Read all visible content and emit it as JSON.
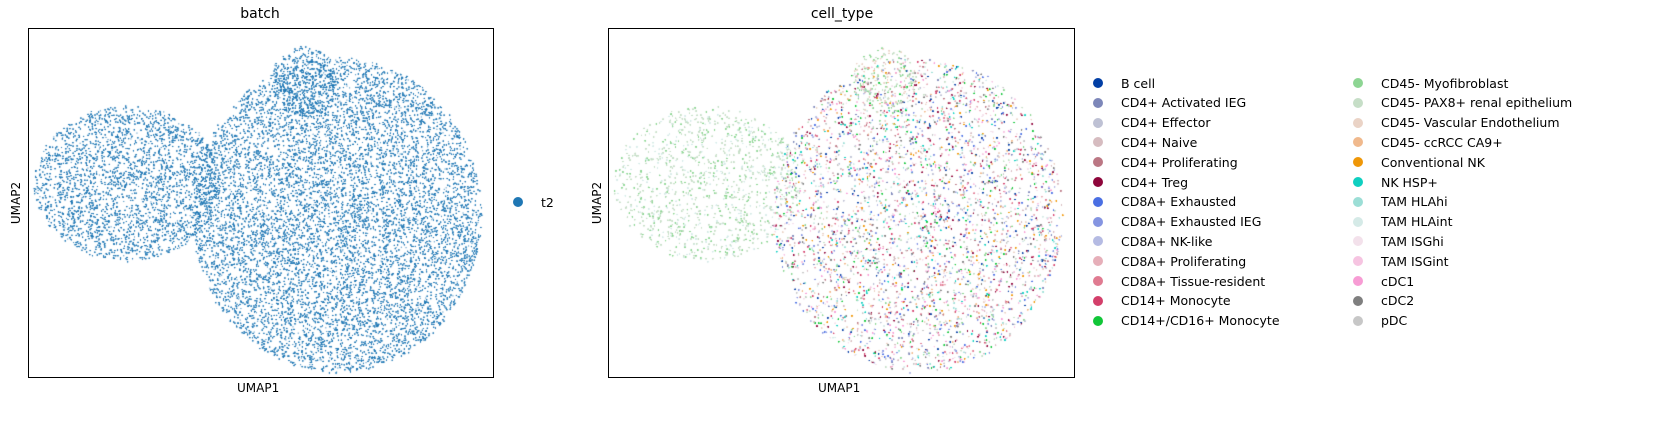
{
  "chart_data": [
    {
      "type": "scatter",
      "title": "batch",
      "xlabel": "UMAP1",
      "ylabel": "UMAP2",
      "grid": false,
      "legend_placement": "right",
      "series": [
        {
          "name": "t2",
          "color": "#1f77b4"
        }
      ]
    },
    {
      "type": "scatter",
      "title": "cell_type",
      "xlabel": "UMAP1",
      "ylabel": "UMAP2",
      "grid": false,
      "legend_placement": "right",
      "series": [
        {
          "name": "B cell",
          "color": "#023fa5"
        },
        {
          "name": "CD4+ Activated IEG",
          "color": "#7d87b9"
        },
        {
          "name": "CD4+ Effector",
          "color": "#bec1d4"
        },
        {
          "name": "CD4+ Naive",
          "color": "#d6bcc0"
        },
        {
          "name": "CD4+ Proliferating",
          "color": "#bb7784"
        },
        {
          "name": "CD4+ Treg",
          "color": "#8e063b"
        },
        {
          "name": "CD8A+ Exhausted",
          "color": "#4a6fe3"
        },
        {
          "name": "CD8A+ Exhausted IEG",
          "color": "#8595e1"
        },
        {
          "name": "CD8A+ NK-like",
          "color": "#b5bbe3"
        },
        {
          "name": "CD8A+ Proliferating",
          "color": "#e6afb9"
        },
        {
          "name": "CD8A+ Tissue-resident",
          "color": "#e07b91"
        },
        {
          "name": "CD14+ Monocyte",
          "color": "#d33f6a"
        },
        {
          "name": "CD14+/CD16+ Monocyte",
          "color": "#11c638"
        },
        {
          "name": "CD45- Myofibroblast",
          "color": "#8dd593"
        },
        {
          "name": "CD45- PAX8+ renal epithelium",
          "color": "#c6dec7"
        },
        {
          "name": "CD45- Vascular Endothelium",
          "color": "#ead3c6"
        },
        {
          "name": "CD45- ccRCC CA9+",
          "color": "#f0b98d"
        },
        {
          "name": "Conventional NK",
          "color": "#ef9708"
        },
        {
          "name": "NK HSP+",
          "color": "#0fcfc0"
        },
        {
          "name": "TAM HLAhi",
          "color": "#9cded6"
        },
        {
          "name": "TAM HLAint",
          "color": "#d5eae7"
        },
        {
          "name": "TAM ISGhi",
          "color": "#f3e1eb"
        },
        {
          "name": "TAM ISGint",
          "color": "#f6c4e1"
        },
        {
          "name": "cDC1",
          "color": "#f79cd4"
        },
        {
          "name": "cDC2",
          "color": "#7f7f7f"
        },
        {
          "name": "pDC",
          "color": "#c7c7c7"
        }
      ]
    }
  ]
}
